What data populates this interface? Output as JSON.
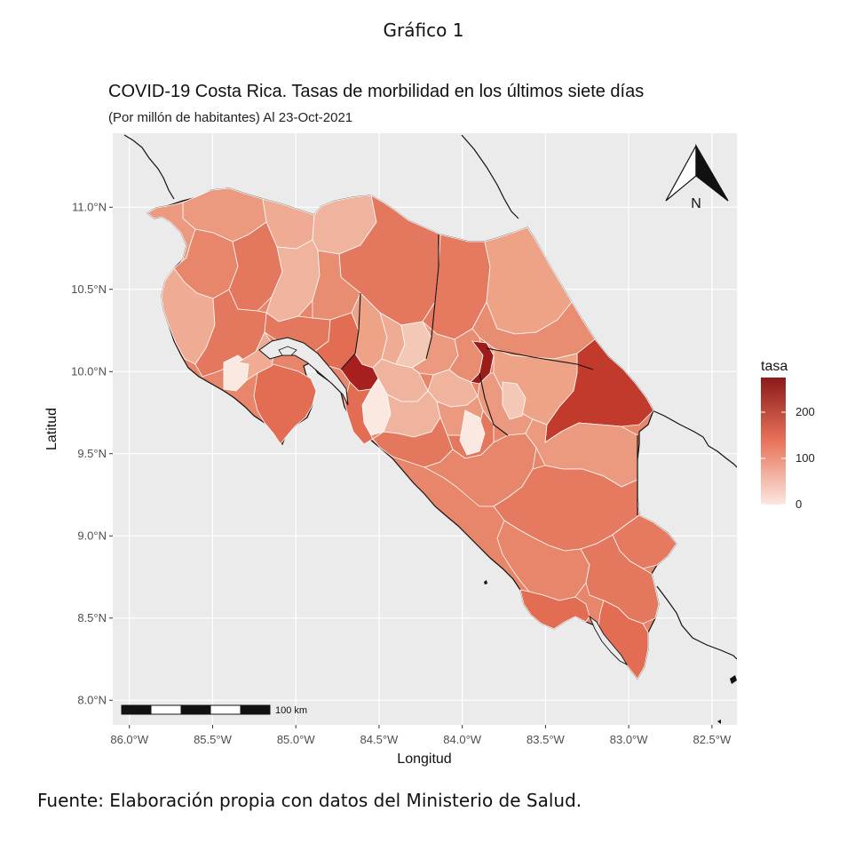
{
  "figure": {
    "caption": "Gráfico 1",
    "source": "Fuente: Elaboración propia con datos del Ministerio de Salud."
  },
  "chart_data": {
    "type": "choropleth",
    "title": "COVID-19 Costa Rica. Tasas de morbilidad en los últimos siete días",
    "subtitle": "(Por millón de habitantes) Al 23-Oct-2021",
    "xlabel": "Longitud",
    "ylabel": "Latitud",
    "xlim": [
      -86.1,
      -82.35
    ],
    "ylim": [
      7.85,
      11.45
    ],
    "x_ticks": [
      {
        "value": -86.0,
        "label": "86.0°W"
      },
      {
        "value": -85.5,
        "label": "85.5°W"
      },
      {
        "value": -85.0,
        "label": "85.0°W"
      },
      {
        "value": -84.5,
        "label": "84.5°W"
      },
      {
        "value": -84.0,
        "label": "84.0°W"
      },
      {
        "value": -83.5,
        "label": "83.5°W"
      },
      {
        "value": -83.0,
        "label": "83.0°W"
      },
      {
        "value": -82.5,
        "label": "82.5°W"
      }
    ],
    "y_ticks": [
      {
        "value": 11.0,
        "label": "11.0°N"
      },
      {
        "value": 10.5,
        "label": "10.5°N"
      },
      {
        "value": 10.0,
        "label": "10.0°N"
      },
      {
        "value": 9.5,
        "label": "9.5°N"
      },
      {
        "value": 9.0,
        "label": "9.0°N"
      },
      {
        "value": 8.5,
        "label": "8.5°N"
      },
      {
        "value": 8.0,
        "label": "8.0°N"
      }
    ],
    "grid": true,
    "legend": {
      "title": "tasa",
      "placement": "right",
      "min": 0,
      "max": 275,
      "ticks": [
        {
          "value": 200,
          "label": "200"
        },
        {
          "value": 100,
          "label": "100"
        },
        {
          "value": 0,
          "label": "0"
        }
      ],
      "color_low": "#fbe8e0",
      "color_high": "#8b1a1a"
    },
    "scale_bar": {
      "label": "100 km"
    },
    "north_arrow": {
      "label": "N"
    },
    "colors": {
      "panel_background": "#ebebeb",
      "grid": "#ffffff",
      "outline": "#1a1a1a"
    }
  }
}
